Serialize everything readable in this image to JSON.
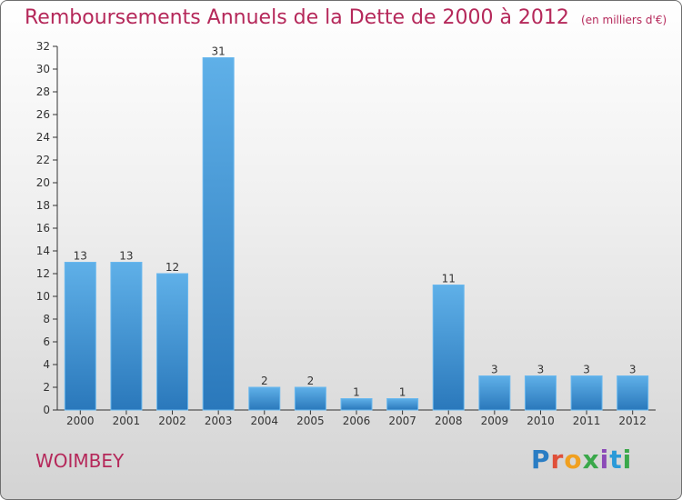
{
  "header": {
    "title": "Remboursements Annuels de la Dette de 2000 à 2012",
    "subtitle": "(en milliers d'€)"
  },
  "footer": {
    "place": "WOIMBEY",
    "logo_letters": [
      "P",
      "r",
      "o",
      "x",
      "i",
      "t",
      "i"
    ],
    "logo_text": "Proxiti"
  },
  "colors": {
    "title": "#b5285a",
    "bar_top": "#5fb0e8",
    "bar_bottom": "#2a78bb",
    "axis": "#333333",
    "grid": "#cfcfcf"
  },
  "chart_data": {
    "type": "bar",
    "title": "Remboursements Annuels de la Dette de 2000 à 2012",
    "subtitle": "(en milliers d'€)",
    "xlabel": "",
    "ylabel": "",
    "categories": [
      "2000",
      "2001",
      "2002",
      "2003",
      "2004",
      "2005",
      "2006",
      "2007",
      "2008",
      "2009",
      "2010",
      "2011",
      "2012"
    ],
    "values": [
      13,
      13,
      12,
      31,
      2,
      2,
      1,
      1,
      11,
      3,
      3,
      3,
      3
    ],
    "data_labels": [
      "13",
      "13",
      "12",
      "31",
      "2",
      "2",
      "1",
      "1",
      "11",
      "3",
      "3",
      "3",
      "3"
    ],
    "ylim": [
      0,
      32
    ],
    "yticks": [
      0,
      2,
      4,
      6,
      8,
      10,
      12,
      14,
      16,
      18,
      20,
      22,
      24,
      26,
      28,
      30,
      32
    ],
    "grid": false,
    "legend": "none"
  }
}
